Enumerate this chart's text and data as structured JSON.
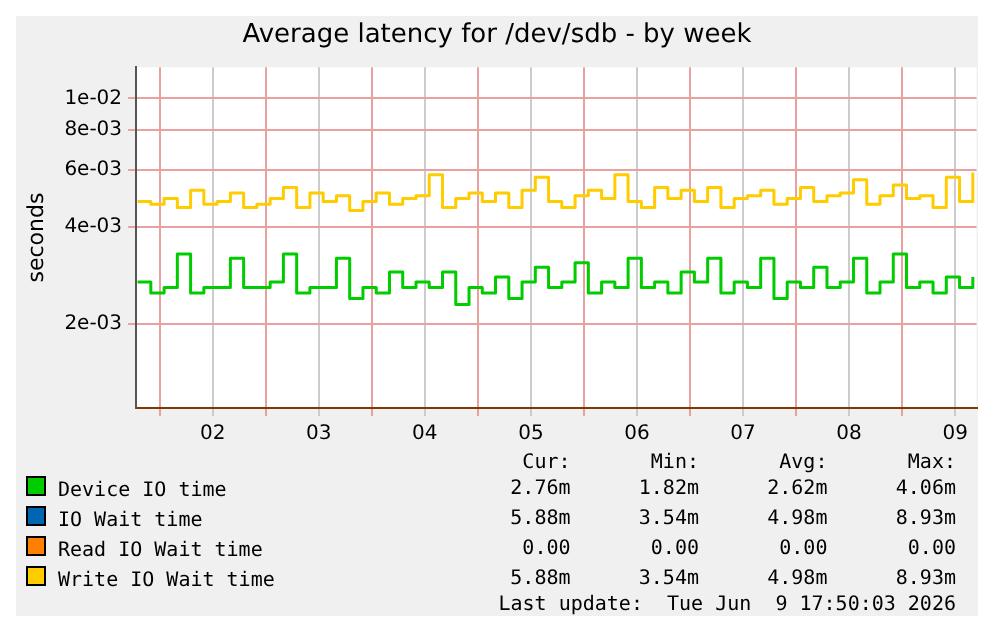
{
  "chart_data": {
    "type": "step",
    "title": "Average latency for /dev/sdb - by week",
    "ylabel": "seconds",
    "x": [
      "2026-06-01T19:00",
      "2026-06-01T22:00",
      "2026-06-02T01:00",
      "2026-06-02T04:00",
      "2026-06-02T07:00",
      "2026-06-02T10:00",
      "2026-06-02T13:00",
      "2026-06-02T16:00",
      "2026-06-02T19:00",
      "2026-06-02T22:00",
      "2026-06-03T01:00",
      "2026-06-03T04:00",
      "2026-06-03T07:00",
      "2026-06-03T10:00",
      "2026-06-03T13:00",
      "2026-06-03T16:00",
      "2026-06-03T19:00",
      "2026-06-03T22:00",
      "2026-06-04T01:00",
      "2026-06-04T04:00",
      "2026-06-04T07:00",
      "2026-06-04T10:00",
      "2026-06-04T13:00",
      "2026-06-04T16:00",
      "2026-06-04T19:00",
      "2026-06-04T22:00",
      "2026-06-05T01:00",
      "2026-06-05T04:00",
      "2026-06-05T07:00",
      "2026-06-05T10:00",
      "2026-06-05T13:00",
      "2026-06-05T16:00",
      "2026-06-05T19:00",
      "2026-06-05T22:00",
      "2026-06-06T01:00",
      "2026-06-06T04:00",
      "2026-06-06T07:00",
      "2026-06-06T10:00",
      "2026-06-06T13:00",
      "2026-06-06T16:00",
      "2026-06-06T19:00",
      "2026-06-06T22:00",
      "2026-06-07T01:00",
      "2026-06-07T04:00",
      "2026-06-07T07:00",
      "2026-06-07T10:00",
      "2026-06-07T13:00",
      "2026-06-07T16:00",
      "2026-06-07T19:00",
      "2026-06-07T22:00",
      "2026-06-08T01:00",
      "2026-06-08T04:00",
      "2026-06-08T07:00",
      "2026-06-08T10:00",
      "2026-06-08T13:00",
      "2026-06-08T16:00",
      "2026-06-08T19:00",
      "2026-06-08T22:00",
      "2026-06-09T01:00",
      "2026-06-09T04:00",
      "2026-06-09T07:00",
      "2026-06-09T10:00",
      "2026-06-09T13:00",
      "2026-06-09T16:00"
    ],
    "series": [
      {
        "name": "Device IO time",
        "color": "#00cc00",
        "values": [
          0.0027,
          0.0025,
          0.0026,
          0.0033,
          0.0025,
          0.0026,
          0.0026,
          0.0032,
          0.0026,
          0.0026,
          0.0027,
          0.0033,
          0.0025,
          0.0026,
          0.0026,
          0.0032,
          0.0024,
          0.0026,
          0.0025,
          0.0029,
          0.0026,
          0.0027,
          0.0026,
          0.0029,
          0.0023,
          0.0026,
          0.0025,
          0.0028,
          0.0024,
          0.0027,
          0.003,
          0.0026,
          0.0027,
          0.0031,
          0.0025,
          0.0027,
          0.0026,
          0.0032,
          0.0026,
          0.0027,
          0.0025,
          0.0029,
          0.0027,
          0.0032,
          0.0025,
          0.0027,
          0.0026,
          0.0032,
          0.0024,
          0.0027,
          0.0026,
          0.003,
          0.0026,
          0.0027,
          0.0032,
          0.0025,
          0.0027,
          0.0033,
          0.0026,
          0.0027,
          0.0025,
          0.0028,
          0.0026,
          0.0028
        ]
      },
      {
        "name": "IO Wait time",
        "color": "#0066b3",
        "values": [
          null,
          null,
          null,
          null,
          null,
          null,
          null,
          null,
          null,
          null,
          null,
          null,
          null,
          null,
          null,
          null,
          null,
          null,
          null,
          null,
          null,
          null,
          null,
          null,
          null,
          null,
          null,
          null,
          null,
          null,
          null,
          null,
          null,
          null,
          null,
          null,
          null,
          null,
          null,
          null,
          null,
          null,
          null,
          null,
          null,
          null,
          null,
          null,
          null,
          null,
          null,
          null,
          null,
          null,
          null,
          null,
          null,
          null,
          null,
          null,
          null,
          null,
          null,
          null
        ]
      },
      {
        "name": "Read IO Wait time",
        "color": "#ff8000",
        "values": [
          null,
          null,
          null,
          null,
          null,
          null,
          null,
          null,
          null,
          null,
          null,
          null,
          null,
          null,
          null,
          null,
          null,
          null,
          null,
          null,
          null,
          null,
          null,
          null,
          null,
          null,
          null,
          null,
          null,
          null,
          null,
          null,
          null,
          null,
          null,
          null,
          null,
          null,
          null,
          null,
          null,
          null,
          null,
          null,
          null,
          null,
          null,
          null,
          null,
          null,
          null,
          null,
          null,
          null,
          null,
          null,
          null,
          null,
          null,
          null,
          null,
          null,
          null,
          null
        ]
      },
      {
        "name": "Write IO Wait time",
        "color": "#ffcc00",
        "values": [
          0.0048,
          0.0047,
          0.0049,
          0.0046,
          0.0052,
          0.0047,
          0.0048,
          0.0051,
          0.0046,
          0.0047,
          0.0049,
          0.0053,
          0.0046,
          0.0051,
          0.0048,
          0.005,
          0.0045,
          0.0048,
          0.0051,
          0.0047,
          0.0049,
          0.005,
          0.0058,
          0.0046,
          0.0049,
          0.0051,
          0.0048,
          0.0051,
          0.0046,
          0.0052,
          0.0057,
          0.0048,
          0.0046,
          0.005,
          0.0052,
          0.0049,
          0.0058,
          0.0048,
          0.0046,
          0.0053,
          0.0049,
          0.0052,
          0.0048,
          0.0053,
          0.0046,
          0.0049,
          0.005,
          0.0052,
          0.0047,
          0.0049,
          0.0053,
          0.0048,
          0.005,
          0.0051,
          0.0056,
          0.0047,
          0.005,
          0.0054,
          0.0049,
          0.005,
          0.0046,
          0.0057,
          0.0048,
          0.0059
        ]
      }
    ],
    "log": "y",
    "ylim": [
      0.0011,
      0.0125
    ],
    "yticks": [
      {
        "value": 0.002,
        "label": "2e-03"
      },
      {
        "value": 0.004,
        "label": "4e-03"
      },
      {
        "value": 0.006,
        "label": "6e-03"
      },
      {
        "value": 0.008,
        "label": "8e-03"
      },
      {
        "value": 0.01,
        "label": "1e-02"
      }
    ],
    "xlim": [
      "2026-06-01T18:40",
      "2026-06-09T16:50"
    ],
    "xticks": [
      {
        "value": "2026-06-02T00:00",
        "label": null
      },
      {
        "value": "2026-06-02T12:00",
        "label": "02"
      },
      {
        "value": "2026-06-03T00:00",
        "label": null
      },
      {
        "value": "2026-06-03T12:00",
        "label": "03"
      },
      {
        "value": "2026-06-04T00:00",
        "label": null
      },
      {
        "value": "2026-06-04T12:00",
        "label": "04"
      },
      {
        "value": "2026-06-05T00:00",
        "label": null
      },
      {
        "value": "2026-06-05T12:00",
        "label": "05"
      },
      {
        "value": "2026-06-06T00:00",
        "label": null
      },
      {
        "value": "2026-06-06T12:00",
        "label": "06"
      },
      {
        "value": "2026-06-07T00:00",
        "label": null
      },
      {
        "value": "2026-06-07T12:00",
        "label": "07"
      },
      {
        "value": "2026-06-08T00:00",
        "label": null
      },
      {
        "value": "2026-06-08T12:00",
        "label": "08"
      },
      {
        "value": "2026-06-09T00:00",
        "label": null
      },
      {
        "value": "2026-06-09T12:00",
        "label": "09"
      }
    ],
    "grid": true,
    "legend": "bottom",
    "annotations": [
      "Cur:",
      "Min:",
      "Avg:",
      "Max:",
      "2.76m",
      "1.82m",
      "2.62m",
      "4.06m",
      "5.88m",
      "3.54m",
      "4.98m",
      "8.93m",
      "0.00",
      "0.00",
      "0.00",
      "0.00",
      "5.88m",
      "3.54m",
      "4.98m",
      "8.93m",
      "Last update:  Tue Jun  9 17:50:03 2026"
    ]
  }
}
